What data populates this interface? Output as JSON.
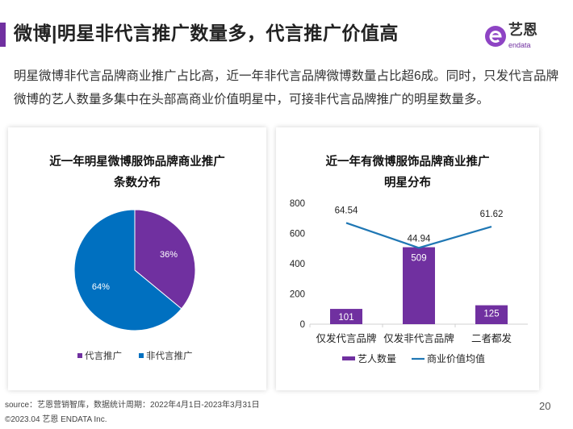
{
  "header": {
    "title": "微博|明星非代言推广数量多，代言推广价值高",
    "logo_text": "艺恩",
    "logo_sub": "endata"
  },
  "description": "明星微博非代言品牌商业推广占比高，近一年非代言品牌微博数量占比超6成。同时，只发代言品牌微博的艺人数量多集中在头部高商业价值明星中，可接非代言品牌推广的明星数量多。",
  "colors": {
    "purple": "#7030a0",
    "blue": "#0070c0"
  },
  "chart_data": [
    {
      "type": "pie",
      "title_line1": "近一年明星微博服饰品牌商业推广",
      "title_line2": "条数分布",
      "slices": [
        {
          "name": "代言推广",
          "value": 36,
          "label": "36%",
          "color": "#7030a0"
        },
        {
          "name": "非代言推广",
          "value": 64,
          "label": "64%",
          "color": "#0070c0"
        }
      ],
      "legend_position": "bottom"
    },
    {
      "type": "bar",
      "title_line1": "近一年有微博服饰品牌商业推广",
      "title_line2": "明星分布",
      "categories": [
        "仅发代言品牌",
        "仅发非代言品牌",
        "二者都发"
      ],
      "ylim": [
        0,
        800
      ],
      "yticks": [
        "0",
        "200",
        "400",
        "600",
        "800"
      ],
      "y2lim": [
        -15,
        80
      ],
      "series": [
        {
          "name": "艺人数量",
          "kind": "bar",
          "color": "#7030a0",
          "values": [
            101,
            509,
            125
          ],
          "labels": [
            "101",
            "509",
            "125"
          ]
        },
        {
          "name": "商业价值均值",
          "kind": "line",
          "axis": "secondary",
          "color": "#1f77b4",
          "values": [
            64.54,
            44.94,
            61.62
          ],
          "labels": [
            "64.54",
            "44.94",
            "61.62"
          ]
        }
      ],
      "legend_position": "bottom"
    }
  ],
  "footer": {
    "source": "source：艺恩营销智库，数据统计周期：2022年4月1日-2023年3月31日",
    "copyright": "©2023.04 艺恩 ENDATA Inc.",
    "page": "20"
  }
}
